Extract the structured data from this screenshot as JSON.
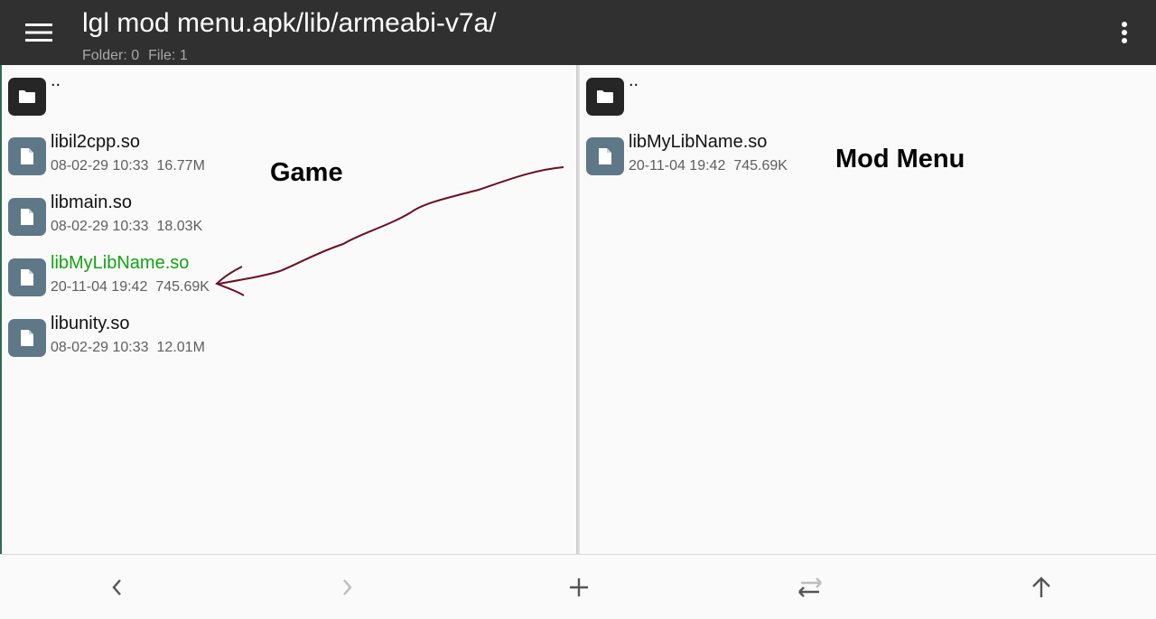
{
  "header": {
    "title": "lgl mod menu.apk/lib/armeabi-v7a/",
    "folder_count": "Folder: 0",
    "file_count": "File: 1",
    "menu_icon": "hamburger-menu-icon",
    "more_icon": "more-vert-icon"
  },
  "left_pane": {
    "parent": {
      "name": ".."
    },
    "files": [
      {
        "name": "libil2cpp.so",
        "date": "08-02-29 10:33",
        "size": "16.77M",
        "highlighted": false
      },
      {
        "name": "libmain.so",
        "date": "08-02-29 10:33",
        "size": "18.03K",
        "highlighted": false
      },
      {
        "name": "libMyLibName.so",
        "date": "20-11-04 19:42",
        "size": "745.69K",
        "highlighted": true
      },
      {
        "name": "libunity.so",
        "date": "08-02-29 10:33",
        "size": "12.01M",
        "highlighted": false
      }
    ]
  },
  "right_pane": {
    "parent": {
      "name": ".."
    },
    "files": [
      {
        "name": "libMyLibName.so",
        "date": "20-11-04 19:42",
        "size": "745.69K",
        "highlighted": false
      }
    ]
  },
  "annotations": {
    "left_label": "Game",
    "right_label": "Mod Menu",
    "arrow_color": "#6b0f22"
  },
  "bottom_bar": {
    "back_icon": "chevron-left-icon",
    "forward_icon": "chevron-right-icon",
    "add_icon": "plus-icon",
    "swap_icon": "swap-horiz-icon",
    "up_icon": "arrow-up-icon"
  },
  "colors": {
    "app_bar": "#303030",
    "highlight_text": "#13a313",
    "file_icon_bg": "#5f7888",
    "folder_icon_bg": "#262626"
  }
}
